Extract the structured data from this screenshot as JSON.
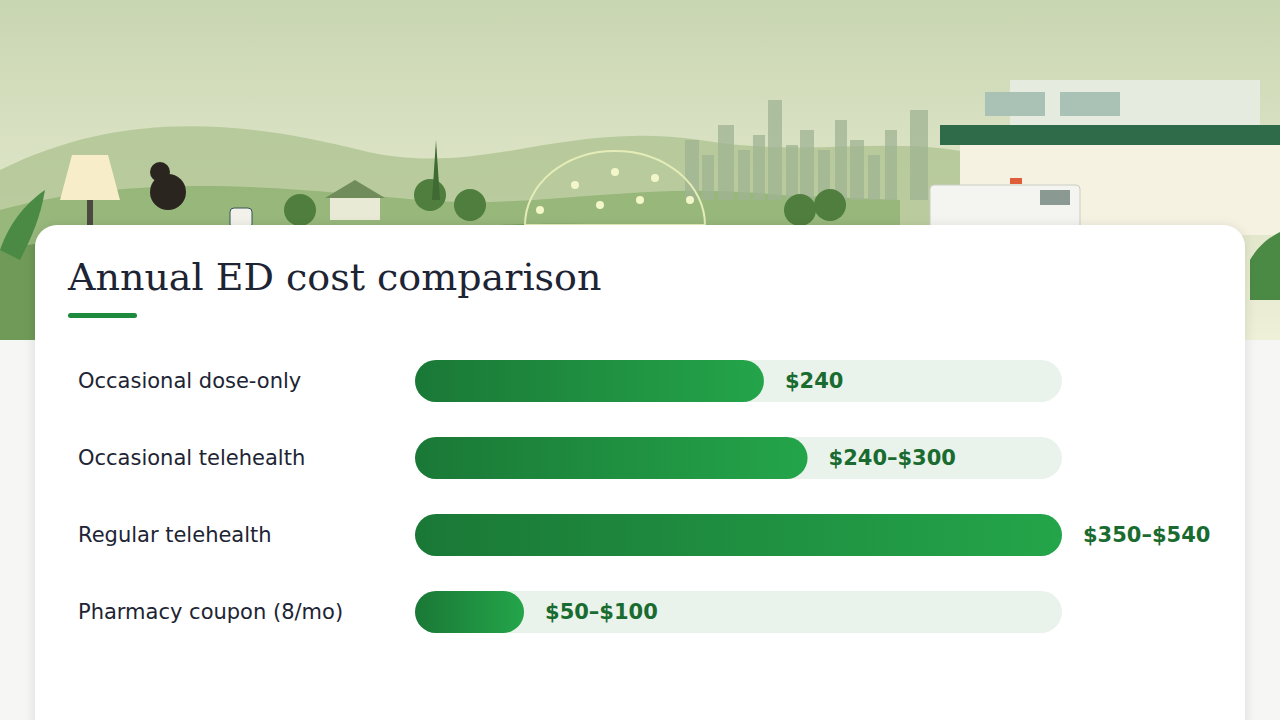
{
  "chart_data": {
    "type": "bar",
    "orientation": "horizontal",
    "title": "Annual ED cost comparison",
    "categories": [
      "Occasional dose-only",
      "Occasional telehealth",
      "Regular telehealth",
      "Pharmacy coupon (8/mo)"
    ],
    "values": [
      240,
      270,
      445,
      75
    ],
    "value_labels": [
      "$240",
      "$240–$300",
      "$350–$540",
      "$50–$100"
    ],
    "data_labels": true,
    "tick_labels": false,
    "grid": false,
    "xlim": [
      0,
      445
    ],
    "color": "#1e8a3e"
  }
}
